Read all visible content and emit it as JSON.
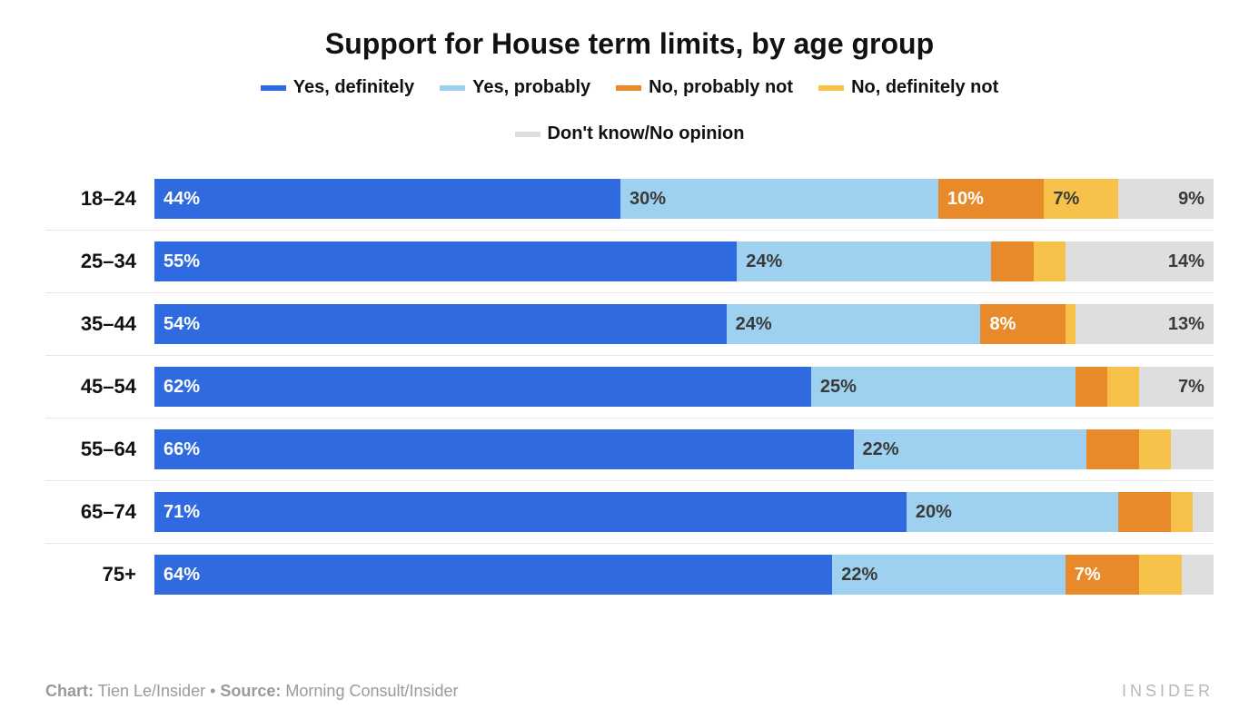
{
  "title": {
    "text": "Support for House term limits, by age group",
    "fontsize": 32
  },
  "legend": {
    "fontsize": 20,
    "items": [
      {
        "label": "Yes, definitely",
        "color": "#2f6ae1"
      },
      {
        "label": "Yes, probably",
        "color": "#9ed1f0"
      },
      {
        "label": "No, probably not",
        "color": "#e98a2a"
      },
      {
        "label": "No, definitely not",
        "color": "#f7c24a"
      },
      {
        "label": "Don't know/No opinion",
        "color": "#dedede"
      }
    ]
  },
  "chart": {
    "type": "stacked-bar-horizontal",
    "label_fontsize": 22,
    "value_fontsize": 20,
    "segment_text_colors": [
      "#ffffff",
      "#3a3a3a",
      "#ffffff",
      "#3a3a3a",
      "#3a3a3a"
    ],
    "min_label_pct": 7,
    "categories": [
      "18–24",
      "25–34",
      "35–44",
      "45–54",
      "55–64",
      "65–74",
      "75+"
    ],
    "series_colors": [
      "#2f6ae1",
      "#9ed1f0",
      "#e98a2a",
      "#f7c24a",
      "#dedede"
    ],
    "rows": [
      {
        "values": [
          44,
          30,
          10,
          7,
          9
        ],
        "show": [
          true,
          true,
          true,
          true,
          true
        ]
      },
      {
        "values": [
          55,
          24,
          4,
          3,
          14
        ],
        "show": [
          true,
          true,
          false,
          false,
          true
        ]
      },
      {
        "values": [
          54,
          24,
          8,
          1,
          13
        ],
        "show": [
          true,
          true,
          true,
          false,
          true
        ]
      },
      {
        "values": [
          62,
          25,
          3,
          3,
          7
        ],
        "show": [
          true,
          true,
          false,
          false,
          true
        ]
      },
      {
        "values": [
          66,
          22,
          5,
          3,
          4
        ],
        "show": [
          true,
          true,
          false,
          false,
          false
        ]
      },
      {
        "values": [
          71,
          20,
          5,
          2,
          2
        ],
        "show": [
          true,
          true,
          false,
          false,
          false
        ]
      },
      {
        "values": [
          64,
          22,
          7,
          4,
          3
        ],
        "show": [
          true,
          true,
          true,
          false,
          false
        ]
      }
    ]
  },
  "footer": {
    "chart_label": "Chart:",
    "chart_credit": " Tien Le/Insider ",
    "separator": "•",
    "source_label": " Source:",
    "source_credit": " Morning Consult/Insider",
    "brand": "INSIDER",
    "fontsize": 18
  }
}
